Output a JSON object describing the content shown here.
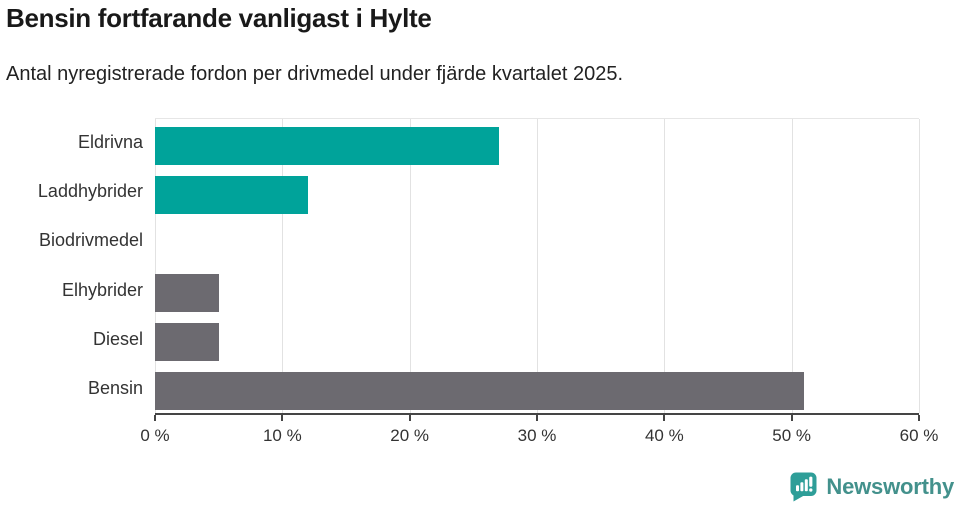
{
  "chart_data": {
    "type": "bar",
    "orientation": "horizontal",
    "title": "Bensin fortfarande vanligast i Hylte",
    "subtitle": "Antal nyregistrerade fordon per drivmedel under fjärde kvartalet 2025.",
    "categories": [
      "Eldrivna",
      "Laddhybrider",
      "Biodrivmedel",
      "Elhybrider",
      "Diesel",
      "Bensin"
    ],
    "values": [
      27,
      12,
      0,
      5,
      5,
      51
    ],
    "unit": "%",
    "xlim": [
      0,
      60
    ],
    "x_ticks": [
      {
        "value": 0,
        "label": "0 %"
      },
      {
        "value": 10,
        "label": "10 %"
      },
      {
        "value": 20,
        "label": "20 %"
      },
      {
        "value": 30,
        "label": "30 %"
      },
      {
        "value": 40,
        "label": "40 %"
      },
      {
        "value": 50,
        "label": "50 %"
      },
      {
        "value": 60,
        "label": "60 %"
      }
    ],
    "bar_colors": [
      "#00A39A",
      "#00A39A",
      "#00A39A",
      "#6C6A70",
      "#6C6A70",
      "#6C6A70"
    ],
    "grid": "vertical",
    "legend": "none"
  },
  "colors": {
    "accent_teal": "#00A39A",
    "neutral_gray": "#6C6A70",
    "axis": "#454545",
    "gridline": "#E2E2E2",
    "text": "#333333",
    "logo_fill": "#2E9E98",
    "brand_text": "#43918C"
  },
  "footer": {
    "brand": "Newsworthy"
  }
}
